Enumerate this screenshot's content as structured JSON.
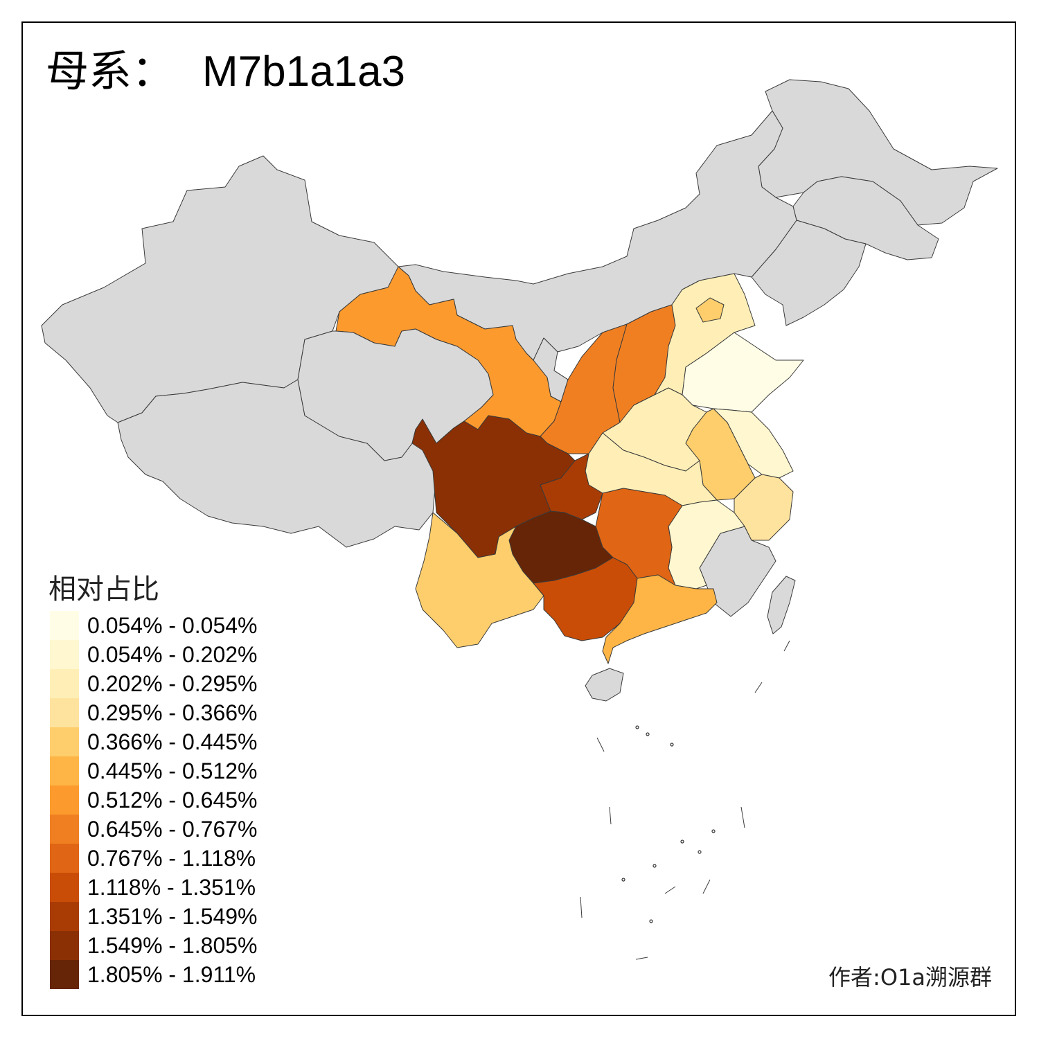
{
  "title": {
    "prefix": "母系：",
    "haplogroup": "M7b1a1a3"
  },
  "legend": {
    "title": "相对占比",
    "items": [
      {
        "label": "0.054% - 0.054%",
        "color": "#fffde6"
      },
      {
        "label": "0.054% - 0.202%",
        "color": "#fff7cf"
      },
      {
        "label": "0.202% - 0.295%",
        "color": "#ffefb7"
      },
      {
        "label": "0.295% - 0.366%",
        "color": "#fee39e"
      },
      {
        "label": "0.366% - 0.445%",
        "color": "#fece6c"
      },
      {
        "label": "0.445% - 0.512%",
        "color": "#feb545"
      },
      {
        "label": "0.512% - 0.645%",
        "color": "#fd9a2e"
      },
      {
        "label": "0.645% - 0.767%",
        "color": "#f07f22"
      },
      {
        "label": "0.767% - 1.118%",
        "color": "#e06514"
      },
      {
        "label": "1.118% - 1.351%",
        "color": "#c94d07"
      },
      {
        "label": "1.351% - 1.549%",
        "color": "#a93c05"
      },
      {
        "label": "1.549% - 1.805%",
        "color": "#8a3004"
      },
      {
        "label": "1.805% - 1.911%",
        "color": "#662506"
      }
    ]
  },
  "no_data_color": "#d9d9d9",
  "credit": "作者:O1a溯源群"
}
